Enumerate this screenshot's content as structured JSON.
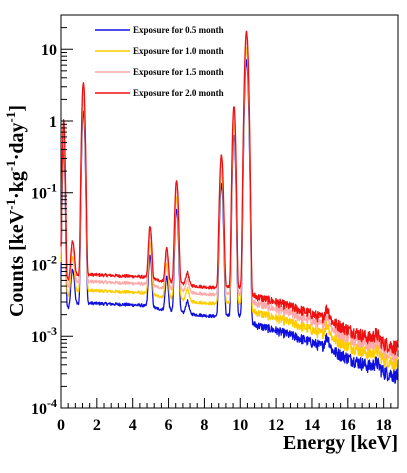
{
  "chart_data": {
    "type": "line",
    "xlabel": "Energy [keV]",
    "ylabel": "Counts [keV⁻¹·kg⁻¹·day⁻¹]",
    "ylabel_parts": {
      "main": "Counts [keV",
      "sup1": "-1",
      "mid1": "·kg",
      "sup2": "-1",
      "mid2": "·day",
      "sup3": "-1",
      "end": "]"
    },
    "xlim": [
      0,
      18.8
    ],
    "ylim": [
      0.0001,
      30
    ],
    "yscale": "log",
    "x_ticks": [
      {
        "value": 0,
        "label": "0"
      },
      {
        "value": 2,
        "label": "2"
      },
      {
        "value": 4,
        "label": "4"
      },
      {
        "value": 6,
        "label": "6"
      },
      {
        "value": 8,
        "label": "8"
      },
      {
        "value": 10,
        "label": "10"
      },
      {
        "value": 12,
        "label": "12"
      },
      {
        "value": 14,
        "label": "14"
      },
      {
        "value": 16,
        "label": "16"
      },
      {
        "value": 18,
        "label": "18"
      }
    ],
    "y_ticks": [
      {
        "value": 0.0001,
        "base": "10",
        "exp": "-4"
      },
      {
        "value": 0.001,
        "base": "10",
        "exp": "-3"
      },
      {
        "value": 0.01,
        "base": "10",
        "exp": "-2"
      },
      {
        "value": 0.1,
        "base": "10",
        "exp": "-1"
      },
      {
        "value": 1,
        "base": "1",
        "exp": ""
      },
      {
        "value": 10,
        "base": "10",
        "exp": ""
      }
    ],
    "legend_position": "top-left",
    "series": [
      {
        "name": "Exposure for 0.5 month",
        "color": "#1010dd",
        "scale": 1.0
      },
      {
        "name": "Exposure for 1.0 month",
        "color": "#ffcc00",
        "scale": 1.5
      },
      {
        "name": "Exposure for 1.5 month",
        "color": "#ffaaaa",
        "scale": 2.0
      },
      {
        "name": "Exposure for 2.0 month",
        "color": "#ee1111",
        "scale": 2.5
      }
    ],
    "continuum": [
      [
        0.0,
        0.0026
      ],
      [
        0.5,
        0.0024
      ],
      [
        0.8,
        0.0028
      ],
      [
        1.5,
        0.0029
      ],
      [
        3.0,
        0.0028
      ],
      [
        4.5,
        0.0027
      ],
      [
        5.5,
        0.0024
      ],
      [
        6.5,
        0.0022
      ],
      [
        7.5,
        0.002
      ],
      [
        8.5,
        0.0019
      ],
      [
        9.6,
        0.002
      ],
      [
        10.2,
        0.0019
      ],
      [
        10.6,
        0.0015
      ],
      [
        12.0,
        0.0012
      ],
      [
        13.0,
        0.001
      ],
      [
        14.0,
        0.00082
      ],
      [
        15.0,
        0.00065
      ],
      [
        16.0,
        0.0005
      ],
      [
        17.0,
        0.0004
      ],
      [
        18.0,
        0.00032
      ],
      [
        18.8,
        0.00028
      ]
    ],
    "peaks": [
      {
        "energy": 0.15,
        "height": 0.4,
        "width": 0.05
      },
      {
        "energy": 0.65,
        "height": 0.006,
        "width": 0.08
      },
      {
        "energy": 1.25,
        "height": 1.4,
        "width": 0.06
      },
      {
        "energy": 4.97,
        "height": 0.011,
        "width": 0.07
      },
      {
        "energy": 5.9,
        "height": 0.0045,
        "width": 0.07
      },
      {
        "energy": 6.45,
        "height": 0.058,
        "width": 0.07
      },
      {
        "energy": 7.05,
        "height": 0.001,
        "width": 0.08
      },
      {
        "energy": 8.95,
        "height": 0.13,
        "width": 0.07
      },
      {
        "energy": 9.65,
        "height": 0.65,
        "width": 0.06
      },
      {
        "energy": 10.35,
        "height": 7.0,
        "width": 0.07
      },
      {
        "energy": 14.85,
        "height": 0.0003,
        "width": 0.12
      },
      {
        "energy": 17.6,
        "height": 8e-05,
        "width": 0.15
      }
    ]
  }
}
